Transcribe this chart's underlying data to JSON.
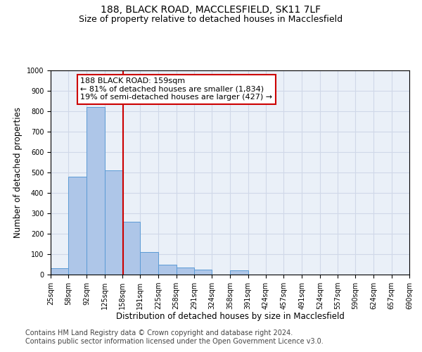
{
  "title1": "188, BLACK ROAD, MACCLESFIELD, SK11 7LF",
  "title2": "Size of property relative to detached houses in Macclesfield",
  "xlabel": "Distribution of detached houses by size in Macclesfield",
  "ylabel": "Number of detached properties",
  "footnote1": "Contains HM Land Registry data © Crown copyright and database right 2024.",
  "footnote2": "Contains public sector information licensed under the Open Government Licence v3.0.",
  "annotation_line1": "188 BLACK ROAD: 159sqm",
  "annotation_line2": "← 81% of detached houses are smaller (1,834)",
  "annotation_line3": "19% of semi-detached houses are larger (427) →",
  "subject_sqm": 159,
  "bar_edges": [
    25,
    58,
    92,
    125,
    158,
    191,
    225,
    258,
    291,
    324,
    358,
    391,
    424,
    457,
    491,
    524,
    557,
    590,
    624,
    657,
    690
  ],
  "bar_heights": [
    30,
    480,
    820,
    510,
    260,
    110,
    50,
    35,
    25,
    0,
    20,
    0,
    0,
    0,
    0,
    0,
    0,
    0,
    0,
    0
  ],
  "bar_color": "#aec6e8",
  "bar_edge_color": "#5b9bd5",
  "vline_color": "#cc0000",
  "ylim": [
    0,
    1000
  ],
  "yticks": [
    0,
    100,
    200,
    300,
    400,
    500,
    600,
    700,
    800,
    900,
    1000
  ],
  "grid_color": "#d0d8e8",
  "bg_color": "#eaf0f8",
  "title1_fontsize": 10,
  "title2_fontsize": 9,
  "annotation_fontsize": 8,
  "xlabel_fontsize": 8.5,
  "ylabel_fontsize": 8.5,
  "footnote_fontsize": 7,
  "tick_fontsize": 7
}
